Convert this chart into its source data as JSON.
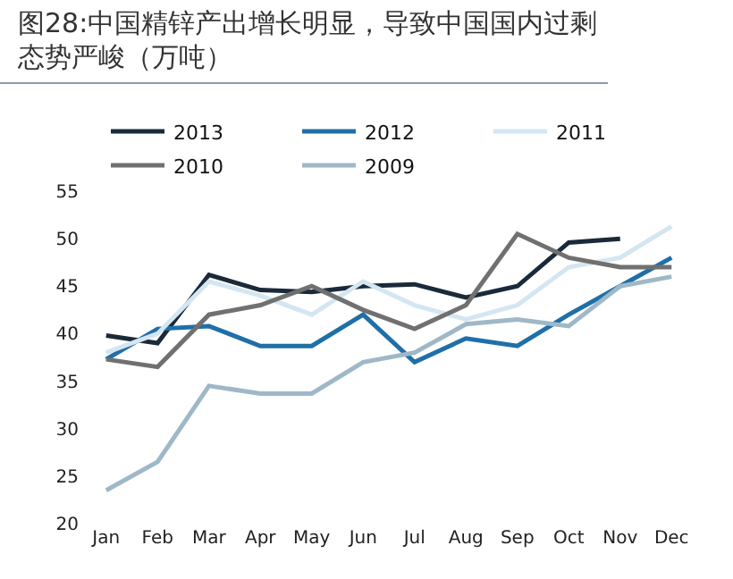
{
  "chart_data": {
    "type": "line",
    "title": "图28:中国精锌产出增长明显，导致中国国内过剩态势严峻（万吨）",
    "categories": [
      "Jan",
      "Feb",
      "Mar",
      "Apr",
      "May",
      "Jun",
      "Jul",
      "Aug",
      "Sep",
      "Oct",
      "Nov",
      "Dec"
    ],
    "series": [
      {
        "name": "2013",
        "color": "#1a2a3a",
        "values": [
          39.8,
          39,
          46.2,
          44.6,
          44.4,
          45,
          45.2,
          43.8,
          45,
          49.6,
          50,
          null
        ]
      },
      {
        "name": "2012",
        "color": "#1f6fa8",
        "values": [
          37.3,
          40.5,
          40.8,
          38.7,
          38.7,
          42,
          37,
          39.5,
          38.7,
          42,
          45,
          48
        ]
      },
      {
        "name": "2011",
        "color": "#d4e6f2",
        "values": [
          38,
          40,
          45.5,
          44,
          42,
          45.5,
          43,
          41.5,
          43,
          47,
          48,
          51.3
        ]
      },
      {
        "name": "2010",
        "color": "#707070",
        "values": [
          37.3,
          36.5,
          42,
          43,
          45,
          42.5,
          40.5,
          43,
          50.5,
          48,
          47,
          47
        ]
      },
      {
        "name": "2009",
        "color": "#9fb8c8",
        "values": [
          23.5,
          26.5,
          34.5,
          33.7,
          33.7,
          37,
          38,
          41,
          41.5,
          40.8,
          45,
          46
        ]
      }
    ],
    "ylim": [
      20,
      55
    ],
    "yticks": [
      20,
      25,
      30,
      35,
      40,
      45,
      50,
      55
    ],
    "grid": false,
    "legend": "top",
    "marker": "none",
    "line_style": "solid"
  }
}
